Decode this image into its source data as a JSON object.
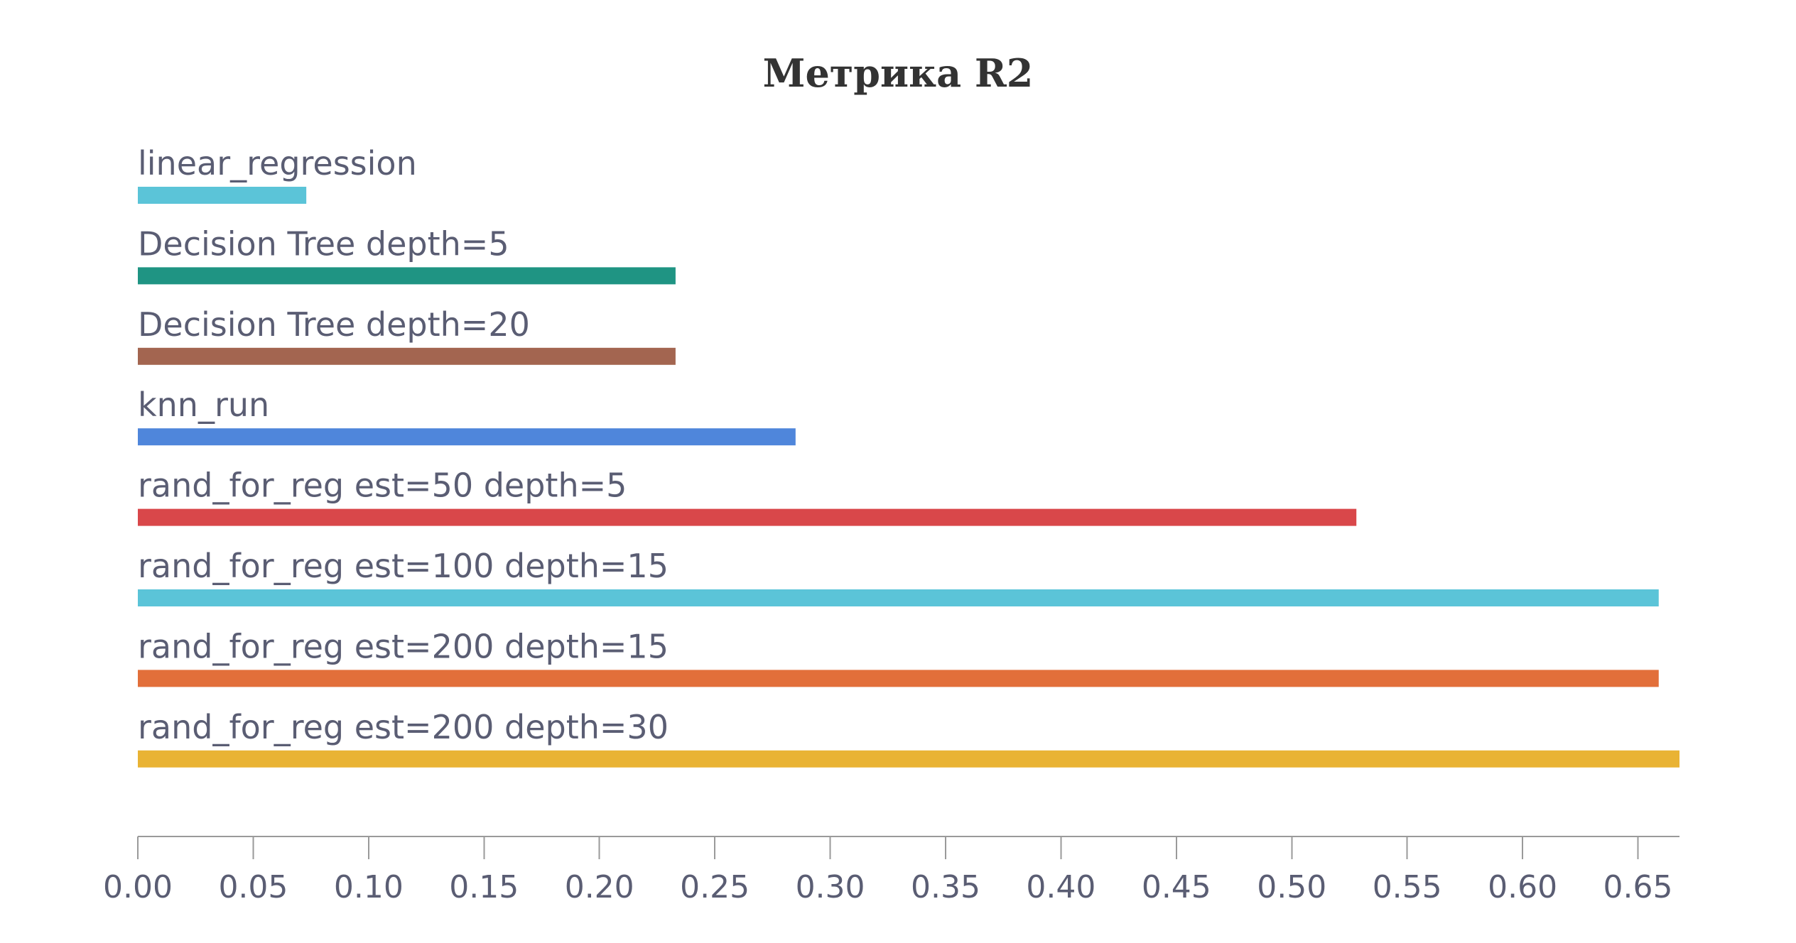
{
  "chart_data": {
    "type": "bar",
    "orientation": "horizontal",
    "title": "Метрика R2",
    "xlabel": "",
    "ylabel": "",
    "xlim": [
      0,
      0.668
    ],
    "grid": false,
    "legend": "none",
    "x_ticks": [
      "0.00",
      "0.05",
      "0.10",
      "0.15",
      "0.20",
      "0.25",
      "0.30",
      "0.35",
      "0.40",
      "0.45",
      "0.50",
      "0.55",
      "0.60",
      "0.65"
    ],
    "categories": [
      "linear_regression",
      "Decision Tree depth=5",
      "Decision Tree depth=20",
      "knn_run",
      "rand_for_reg est=50 depth=5",
      "rand_for_reg est=100 depth=15",
      "rand_for_reg est=200 depth=15",
      "rand_for_reg est=200 depth=30"
    ],
    "values": [
      0.073,
      0.233,
      0.233,
      0.285,
      0.528,
      0.659,
      0.659,
      0.668
    ],
    "colors": [
      "#5bc4d8",
      "#1f9483",
      "#a36550",
      "#4f86db",
      "#d9474a",
      "#5bc4d8",
      "#e26f3a",
      "#e9b334"
    ]
  }
}
